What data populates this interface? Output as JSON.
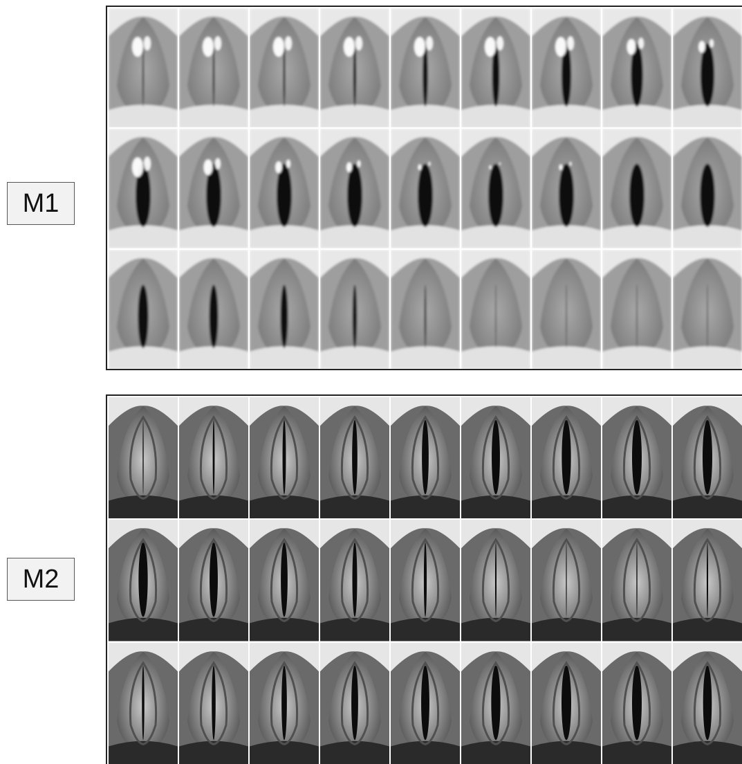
{
  "labels": {
    "m1": "M1",
    "m2": "M2"
  },
  "panels": [
    {
      "id": "m1",
      "style": "blurry",
      "glottal_opening": [
        0.1,
        0.12,
        0.14,
        0.2,
        0.35,
        0.5,
        0.65,
        0.8,
        0.92,
        1.0,
        1.0,
        1.0,
        1.0,
        1.0,
        1.0,
        1.0,
        1.0,
        0.98,
        0.7,
        0.6,
        0.5,
        0.3,
        0.12,
        0.05,
        0.03,
        0.03,
        0.03
      ],
      "glare": [
        1,
        1,
        1,
        1,
        1,
        1,
        1,
        0.8,
        0.6,
        1,
        0.8,
        0.6,
        0.5,
        0.3,
        0.2,
        0.3,
        0,
        0,
        0,
        0,
        0,
        0,
        0,
        0,
        0,
        0,
        0
      ]
    },
    {
      "id": "m2",
      "style": "sharp",
      "glottal_opening": [
        0.1,
        0.2,
        0.35,
        0.55,
        0.7,
        0.85,
        0.95,
        1.0,
        1.0,
        0.95,
        0.85,
        0.7,
        0.5,
        0.3,
        0.15,
        0.08,
        0.1,
        0.15,
        0.25,
        0.4,
        0.55,
        0.7,
        0.85,
        0.95,
        1.0,
        1.0,
        0.9
      ],
      "glare": []
    }
  ],
  "colors": {
    "m1_bg": "#bdbdbd",
    "m2_bg": "#9a9a9a",
    "fold_dark": "#101010"
  }
}
